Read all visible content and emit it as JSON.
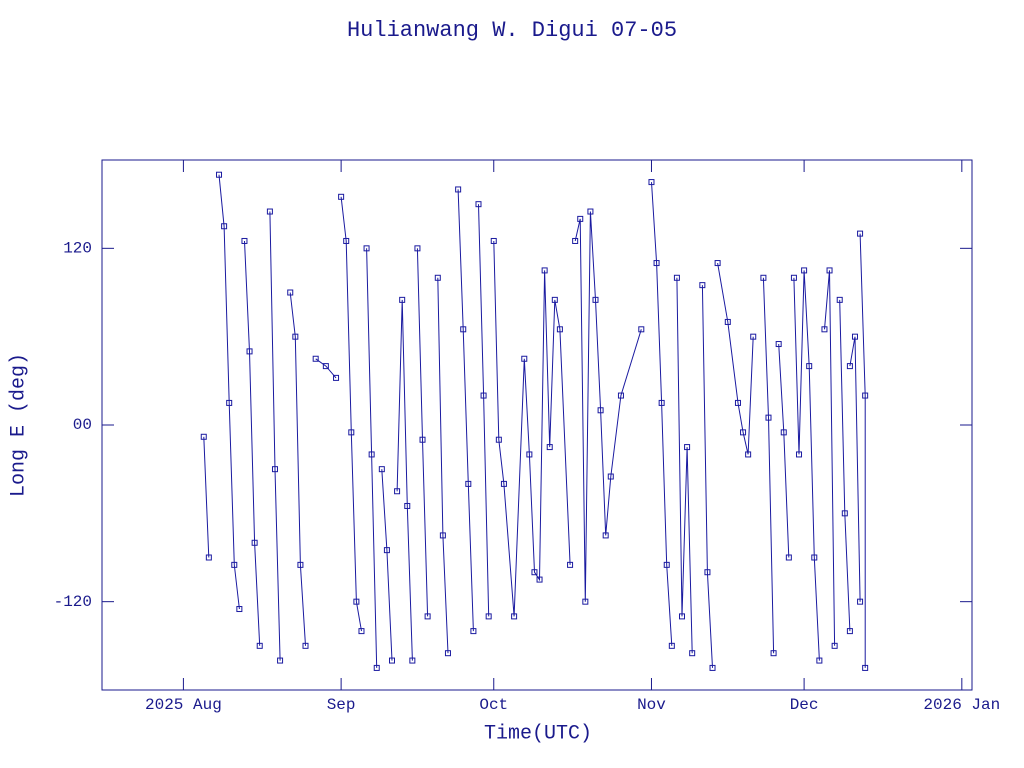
{
  "chart_data": {
    "type": "line",
    "title": "Hulianwang W. Digui 07-05",
    "x_label": "Time(UTC)",
    "y_label": "Long E (deg)",
    "xlim": [
      "2025-07-16",
      "2026-01-03"
    ],
    "ylim": [
      -180,
      180
    ],
    "xticks": [
      {
        "value": "2025-08-01",
        "label": "2025 Aug"
      },
      {
        "value": "2025-09-01",
        "label": "Sep"
      },
      {
        "value": "2025-10-01",
        "label": "Oct"
      },
      {
        "value": "2025-11-01",
        "label": "Nov"
      },
      {
        "value": "2025-12-01",
        "label": "Dec"
      },
      {
        "value": "2026-01-01",
        "label": "2026 Jan"
      }
    ],
    "yticks": [
      -120,
      {
        "value": 0,
        "label": "00"
      },
      120
    ],
    "series": [
      {
        "color": "#1a1aa0",
        "x": [
          "2025-08-05",
          "2025-08-06",
          "2025-08-08",
          "2025-08-08",
          "2025-08-09",
          "2025-08-10",
          "2025-08-11",
          "2025-08-12",
          "2025-08-13",
          "2025-08-13",
          "2025-08-14",
          "2025-08-15",
          "2025-08-16",
          "2025-08-18",
          "2025-08-18",
          "2025-08-19",
          "2025-08-20",
          "2025-08-22",
          "2025-08-22",
          "2025-08-23",
          "2025-08-24",
          "2025-08-25",
          "2025-08-27",
          "2025-08-27",
          "2025-08-29",
          "2025-08-31",
          "2025-09-01",
          "2025-09-01",
          "2025-09-02",
          "2025-09-03",
          "2025-09-04",
          "2025-09-05",
          "2025-09-06",
          "2025-09-06",
          "2025-09-07",
          "2025-09-08",
          "2025-09-09",
          "2025-09-09",
          "2025-09-10",
          "2025-09-11",
          "2025-09-12",
          "2025-09-12",
          "2025-09-13",
          "2025-09-14",
          "2025-09-15",
          "2025-09-16",
          "2025-09-16",
          "2025-09-17",
          "2025-09-18",
          "2025-09-20",
          "2025-09-20",
          "2025-09-21",
          "2025-09-22",
          "2025-09-24",
          "2025-09-24",
          "2025-09-25",
          "2025-09-26",
          "2025-09-27",
          "2025-09-28",
          "2025-09-28",
          "2025-09-29",
          "2025-09-30",
          "2025-10-01",
          "2025-10-01",
          "2025-10-02",
          "2025-10-03",
          "2025-10-05",
          "2025-10-07",
          "2025-10-08",
          "2025-10-09",
          "2025-10-10",
          "2025-10-11",
          "2025-10-12",
          "2025-10-13",
          "2025-10-14",
          "2025-10-16",
          "2025-10-17",
          "2025-10-17",
          "2025-10-18",
          "2025-10-19",
          "2025-10-20",
          "2025-10-21",
          "2025-10-22",
          "2025-10-23",
          "2025-10-24",
          "2025-10-26",
          "2025-10-30",
          "2025-11-01",
          "2025-11-01",
          "2025-11-02",
          "2025-11-03",
          "2025-11-04",
          "2025-11-05",
          "2025-11-06",
          "2025-11-06",
          "2025-11-07",
          "2025-11-08",
          "2025-11-09",
          "2025-11-11",
          "2025-11-11",
          "2025-11-12",
          "2025-11-13",
          "2025-11-14",
          "2025-11-14",
          "2025-11-16",
          "2025-11-18",
          "2025-11-19",
          "2025-11-20",
          "2025-11-21",
          "2025-11-23",
          "2025-11-23",
          "2025-11-24",
          "2025-11-25",
          "2025-11-26",
          "2025-11-26",
          "2025-11-27",
          "2025-11-28",
          "2025-11-29",
          "2025-11-29",
          "2025-11-30",
          "2025-12-01",
          "2025-12-02",
          "2025-12-03",
          "2025-12-04",
          "2025-12-05",
          "2025-12-05",
          "2025-12-06",
          "2025-12-07",
          "2025-12-08",
          "2025-12-08",
          "2025-12-09",
          "2025-12-10",
          "2025-12-10",
          "2025-12-10",
          "2025-12-11",
          "2025-12-12",
          "2025-12-12",
          "2025-12-12",
          "2025-12-13",
          "2025-12-13"
        ],
        "values": [
          -8,
          -90,
          null,
          170,
          135,
          15,
          -95,
          -125,
          null,
          125,
          50,
          -80,
          -150,
          null,
          145,
          -30,
          -160,
          null,
          90,
          60,
          -95,
          -150,
          null,
          45,
          40,
          32,
          null,
          155,
          125,
          -5,
          -120,
          -140,
          null,
          120,
          -20,
          -165,
          null,
          -30,
          -85,
          -160,
          null,
          -45,
          85,
          -55,
          -160,
          null,
          120,
          -10,
          -130,
          null,
          100,
          -75,
          -155,
          null,
          160,
          65,
          -40,
          -140,
          null,
          150,
          20,
          -130,
          null,
          125,
          -10,
          -40,
          -130,
          45,
          -20,
          -100,
          -105,
          105,
          -15,
          85,
          65,
          -95,
          null,
          125,
          140,
          -120,
          145,
          85,
          10,
          -75,
          -35,
          20,
          65,
          null,
          165,
          110,
          15,
          -95,
          -150,
          null,
          100,
          -130,
          -15,
          -155,
          null,
          95,
          -100,
          -165,
          null,
          110,
          70,
          15,
          -5,
          -20,
          60,
          null,
          100,
          5,
          -155,
          null,
          55,
          -5,
          -90,
          null,
          100,
          -20,
          105,
          40,
          -90,
          -160,
          null,
          65,
          105,
          -150,
          null,
          85,
          -60,
          -140,
          null,
          40,
          60,
          -120,
          null,
          130,
          20,
          -165
        ]
      }
    ]
  }
}
